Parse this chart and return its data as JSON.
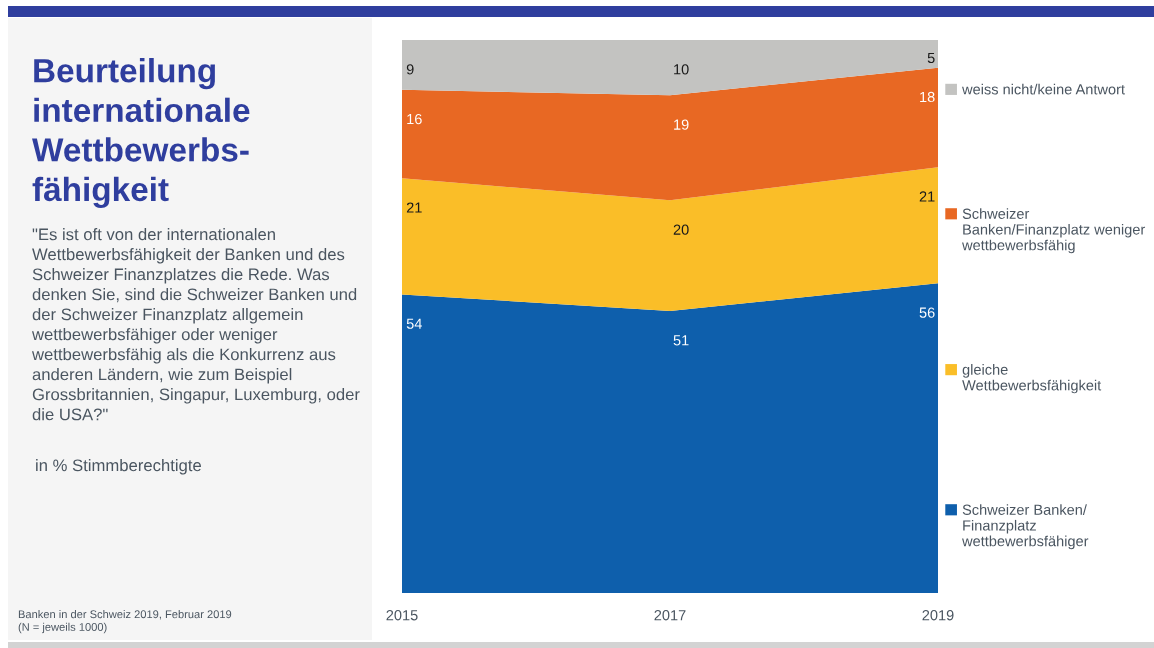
{
  "chart_data": {
    "type": "area",
    "stacked": true,
    "title": "Beurteilung\ninternationale\nWettbewerbs-\nfähigkeit",
    "subtitle": "\"Es ist oft von der internationalen\nWettbewerbsfähigkeit der Banken und des\nSchweizer Finanzplatzes die Rede. Was\ndenken Sie, sind die Schweizer Banken und\nder Schweizer Finanzplatz allgemein\nwettbewerbsfähiger oder weniger\nwettbewerbsfähig als die Konkurrenz aus\nanderen Ländern, wie zum Beispiel\nGrossbritannien, Singapur, Luxemburg, oder\ndie USA?\"",
    "annotations": [
      "in % Stimmberechtigte",
      "Banken in der Schweiz 2019, Februar 2019\n(N = jeweils 1000)"
    ],
    "categories": [
      "2015",
      "2017",
      "2019"
    ],
    "series": [
      {
        "name": "Schweizer Banken/\nFinanzplatz\nwettbewerbsfähiger",
        "color": "#0e5fac",
        "values": [
          54,
          51,
          56
        ]
      },
      {
        "name": "gleiche\nWettbewerbsfähigkeit",
        "color": "#fabe28",
        "values": [
          21,
          20,
          21
        ]
      },
      {
        "name": "Schweizer\nBanken/Finanzplatz weniger\nwettbewerbsfähig",
        "color": "#e86823",
        "values": [
          16,
          19,
          18
        ]
      },
      {
        "name": "weiss nicht/keine Antwort",
        "color": "#c3c3c1",
        "values": [
          9,
          10,
          5
        ]
      }
    ],
    "data_labels": true,
    "legend": "right",
    "tick_labels": "x"
  }
}
